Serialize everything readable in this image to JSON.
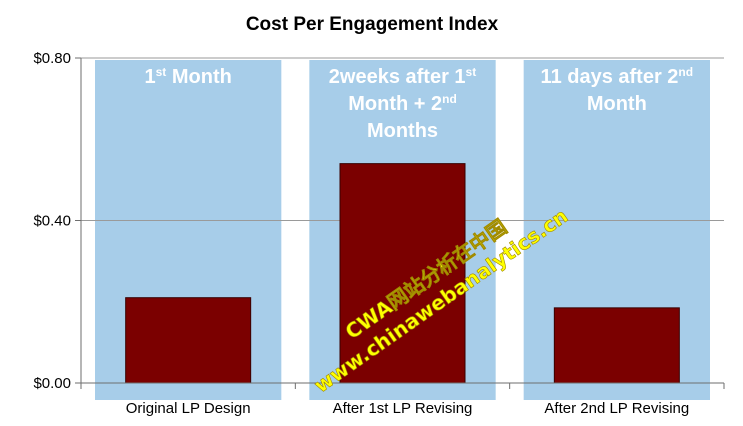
{
  "chart_data": {
    "type": "bar",
    "title": "Cost Per Engagement Index",
    "categories": [
      "Original LP Design",
      "After 1st LP Revising",
      "After 2nd LP Revising"
    ],
    "values": [
      0.21,
      0.54,
      0.185
    ],
    "ylim": [
      0,
      0.8
    ],
    "yticks": [
      "$0.00",
      "$0.40",
      "$0.80"
    ],
    "ytick_values": [
      0,
      0.4,
      0.8
    ],
    "xlabel": "",
    "ylabel": "",
    "grid": true,
    "phases": [
      {
        "lines": [
          [
            {
              "t": "1"
            },
            {
              "t": "st",
              "sup": true
            },
            {
              "t": " Month"
            }
          ]
        ]
      },
      {
        "lines": [
          [
            {
              "t": "2weeks after 1"
            },
            {
              "t": "st",
              "sup": true
            }
          ],
          [
            {
              "t": "Month + 2"
            },
            {
              "t": "nd",
              "sup": true
            }
          ],
          [
            {
              "t": "Months"
            }
          ]
        ]
      },
      {
        "lines": [
          [
            {
              "t": "11 days after 2"
            },
            {
              "t": "nd",
              "sup": true
            }
          ],
          [
            {
              "t": "Month"
            }
          ]
        ]
      }
    ],
    "colors": {
      "bar": "#7b0000",
      "bar_stroke": "#3a0000",
      "phase_bg": "#a7cde9",
      "grid": "#9a9a9a",
      "axis": "#6e6e6e"
    }
  },
  "watermark": {
    "line1": "CWA网站分析在中国",
    "line2": "www.chinawebanalytics.cn"
  }
}
